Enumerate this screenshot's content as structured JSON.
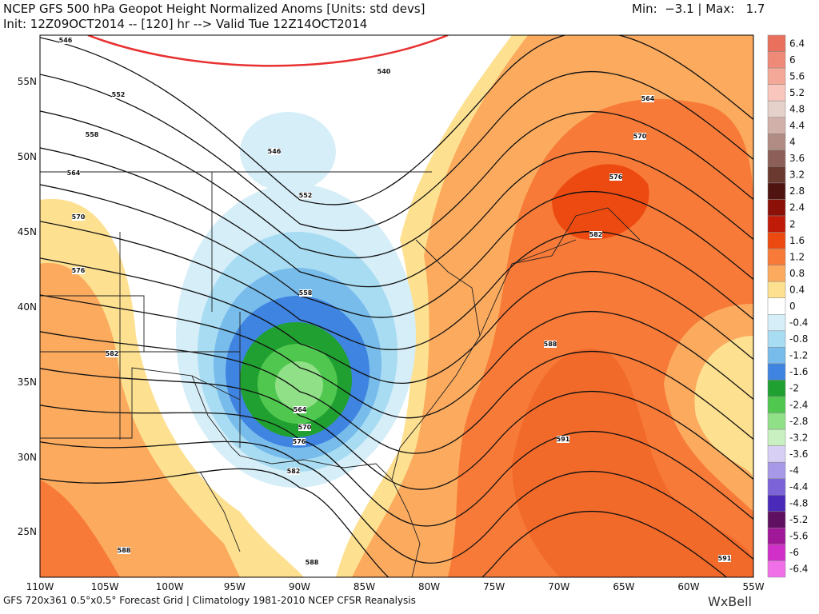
{
  "header": {
    "title": "NCEP GFS 500 hPa Geopot Height Normalized Anoms [Units: std devs]",
    "range": "Min:  −3.1 | Max:   1.7",
    "init": "Init: 12Z09OCT2014 -- [120] hr --> Valid Tue 12Z14OCT2014"
  },
  "map": {
    "lat_labels": [
      "55N",
      "50N",
      "45N",
      "40N",
      "35N",
      "30N",
      "25N"
    ],
    "lon_labels": [
      "110W",
      "105W",
      "100W",
      "95W",
      "90W",
      "85W",
      "80W",
      "75W",
      "70W",
      "65W",
      "60W",
      "55W"
    ],
    "contour_labels": [
      546,
      552,
      558,
      564,
      570,
      576,
      582,
      588,
      540,
      546,
      552,
      558,
      564,
      570,
      576,
      582,
      588,
      564,
      570,
      576,
      582,
      588,
      591,
      591
    ]
  },
  "colorbar": {
    "labels": [
      6.4,
      6,
      5.6,
      5.2,
      4.8,
      4.4,
      4,
      3.6,
      3.2,
      2.8,
      2.4,
      2,
      1.6,
      1.2,
      0.8,
      0.4,
      0,
      -0.4,
      -0.8,
      -1.2,
      -1.6,
      -2,
      -2.4,
      -2.8,
      -3.2,
      -3.6,
      -4,
      -4.4,
      -4.8,
      -5.2,
      -5.6,
      -6,
      -6.4
    ],
    "colors": [
      "#e8705c",
      "#ef8a78",
      "#f4a898",
      "#f8c6bc",
      "#e6d0ca",
      "#d0b0a8",
      "#b08c84",
      "#8c6058",
      "#6a3a30",
      "#501410",
      "#8a1008",
      "#c01a08",
      "#ec4a10",
      "#f77a38",
      "#fbaa5e",
      "#fde090",
      "#ffffff",
      "#d6eef8",
      "#a8dcf2",
      "#78bcec",
      "#3e84e0",
      "#20a030",
      "#50c850",
      "#90e088",
      "#c8f0c0",
      "#d8d0f4",
      "#a898e8",
      "#7c64d8",
      "#4a2ab8",
      "#601060",
      "#a01898",
      "#d030c8",
      "#f070e8"
    ]
  },
  "footer": {
    "text": "GFS 720x361 0.5°x0.5° Forecast Grid | Climatology 1981-2010 NCEP CFSR Reanalysis",
    "brand": "WxBell"
  }
}
